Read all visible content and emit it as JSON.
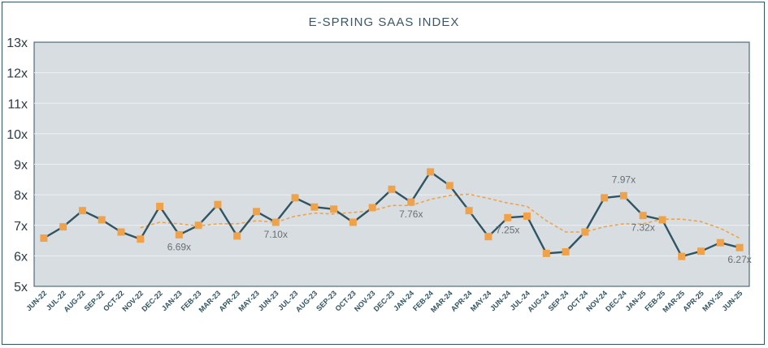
{
  "chart_data": {
    "type": "line",
    "title": "E-SPRING SAAS INDEX",
    "xlabel": "",
    "ylabel": "",
    "ylim": [
      5,
      13
    ],
    "yticks": [
      "5x",
      "6x",
      "7x",
      "8x",
      "9x",
      "10x",
      "11x",
      "12x",
      "13x"
    ],
    "grid": true,
    "categories": [
      "JUN-22",
      "JUL-22",
      "AUG-22",
      "SEP-22",
      "OCT-22",
      "NOV-22",
      "DEC-22",
      "JAN-23",
      "FEB-23",
      "MAR-23",
      "APR-23",
      "MAY-23",
      "JUN-23",
      "JUL-23",
      "AUG-23",
      "SEP-23",
      "OCT-23",
      "NOV-23",
      "DEC-23",
      "JAN-24",
      "FEB-24",
      "MAR-24",
      "APR-24",
      "MAY-24",
      "JUN-24",
      "JUL-24",
      "AUG-24",
      "SEP-24",
      "OCT-24",
      "NOV-24",
      "DEC-24",
      "JAN-25",
      "FEB-25",
      "MAR-25",
      "APR-25",
      "MAY-25",
      "JUN-25"
    ],
    "series": [
      {
        "style": "solid-with-square-markers",
        "line_color": "#2f5462",
        "marker_color": "#f0a24a",
        "values": [
          6.58,
          6.95,
          7.48,
          7.18,
          6.78,
          6.55,
          7.62,
          6.69,
          7.0,
          7.68,
          6.65,
          7.45,
          7.1,
          7.9,
          7.6,
          7.53,
          7.1,
          7.58,
          8.18,
          7.76,
          8.75,
          8.3,
          7.48,
          6.63,
          7.25,
          7.3,
          6.08,
          6.13,
          6.78,
          7.9,
          7.97,
          7.32,
          7.18,
          5.98,
          6.15,
          6.43,
          6.27
        ]
      },
      {
        "style": "dashed",
        "line_color": "#f0a24a",
        "values": [
          null,
          null,
          null,
          null,
          null,
          6.92,
          7.1,
          7.05,
          6.98,
          7.05,
          7.05,
          7.15,
          7.1,
          7.3,
          7.4,
          7.37,
          7.42,
          7.48,
          7.65,
          7.65,
          7.85,
          7.98,
          8.02,
          7.88,
          7.73,
          7.62,
          7.15,
          6.78,
          6.78,
          6.95,
          7.05,
          7.05,
          7.2,
          7.2,
          7.12,
          6.9,
          6.58
        ]
      }
    ],
    "data_labels": [
      {
        "index": 7,
        "text": "6.69x",
        "position": "below"
      },
      {
        "index": 12,
        "text": "7.10x",
        "position": "below"
      },
      {
        "index": 19,
        "text": "7.76x",
        "position": "below"
      },
      {
        "index": 24,
        "text": "7.25x",
        "position": "below"
      },
      {
        "index": 30,
        "text": "7.97x",
        "position": "above"
      },
      {
        "index": 31,
        "text": "7.32x",
        "position": "below"
      },
      {
        "index": 36,
        "text": "6.27x",
        "position": "below"
      }
    ],
    "plot_background": "#d7dde1"
  }
}
